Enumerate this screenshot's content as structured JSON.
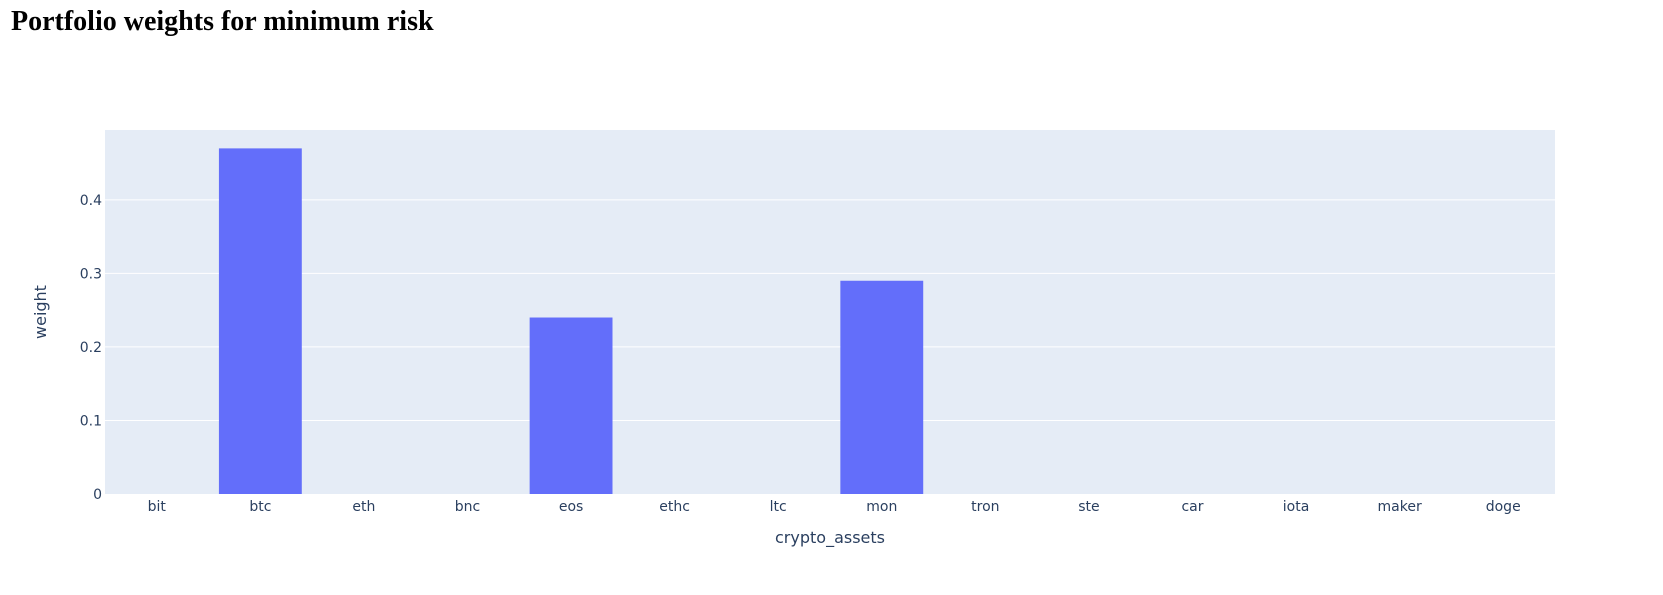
{
  "page": {
    "title": "Portfolio weights for minimum risk"
  },
  "chart_data": {
    "type": "bar",
    "title": "Portfolio weights for minimum risk",
    "xlabel": "crypto_assets",
    "ylabel": "weight",
    "categories": [
      "bit",
      "btc",
      "eth",
      "bnc",
      "eos",
      "ethc",
      "ltc",
      "mon",
      "tron",
      "ste",
      "car",
      "iota",
      "maker",
      "doge"
    ],
    "values": [
      0,
      0.47,
      0,
      0,
      0.24,
      0,
      0,
      0.29,
      0,
      0,
      0,
      0,
      0,
      0
    ],
    "ylim": [
      0,
      0.495
    ],
    "yticks": [
      0,
      0.1,
      0.2,
      0.3,
      0.4
    ],
    "ytick_labels": [
      "0",
      "0.1",
      "0.2",
      "0.3",
      "0.4"
    ],
    "grid": true,
    "legend": "none",
    "colors": {
      "bar": "#636efa",
      "plot_background": "#e5ecf6",
      "grid": "#ffffff",
      "text": "#2a3f5f"
    }
  }
}
